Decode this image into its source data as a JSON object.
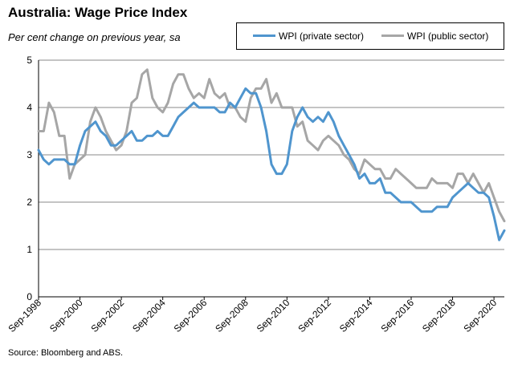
{
  "title": "Australia: Wage Price Index",
  "subtitle": "Per cent change on previous year, sa",
  "source": "Source: Bloomberg and ABS.",
  "colors": {
    "private": "#4f95ce",
    "public": "#a6a6a6",
    "grid": "#888888"
  },
  "legend": {
    "private": "WPI (private sector)",
    "public": "WPI (public sector)"
  },
  "chart_data": {
    "type": "line",
    "ylim": [
      0,
      5
    ],
    "yticks": [
      "0",
      "1",
      "2",
      "3",
      "4",
      "5"
    ],
    "grid": true,
    "legend_position": "top-right",
    "x_start": "Sep-1998",
    "x_end": "Dec-2020",
    "x_tick_labels": [
      "Sep-1998",
      "Sep-2000",
      "Sep-2002",
      "Sep-2004",
      "Sep-2006",
      "Sep-2008",
      "Sep-2010",
      "Sep-2012",
      "Sep-2014",
      "Sep-2016",
      "Sep-2018",
      "Sep-2020"
    ],
    "series": [
      {
        "name": "WPI (private sector)",
        "values": [
          3.1,
          2.9,
          2.8,
          2.9,
          2.9,
          2.9,
          2.8,
          2.8,
          3.2,
          3.5,
          3.6,
          3.7,
          3.5,
          3.4,
          3.2,
          3.2,
          3.3,
          3.4,
          3.5,
          3.3,
          3.3,
          3.4,
          3.4,
          3.5,
          3.4,
          3.4,
          3.6,
          3.8,
          3.9,
          4.0,
          4.1,
          4.0,
          4.0,
          4.0,
          4.0,
          3.9,
          3.9,
          4.1,
          4.0,
          4.2,
          4.4,
          4.3,
          4.3,
          4.0,
          3.5,
          2.8,
          2.6,
          2.6,
          2.8,
          3.5,
          3.8,
          4.0,
          3.8,
          3.7,
          3.8,
          3.7,
          3.9,
          3.7,
          3.4,
          3.2,
          3.0,
          2.8,
          2.5,
          2.6,
          2.4,
          2.4,
          2.5,
          2.2,
          2.2,
          2.1,
          2.0,
          2.0,
          2.0,
          1.9,
          1.8,
          1.8,
          1.8,
          1.9,
          1.9,
          1.9,
          2.1,
          2.2,
          2.3,
          2.4,
          2.3,
          2.2,
          2.2,
          2.1,
          1.7,
          1.2,
          1.4
        ]
      },
      {
        "name": "WPI (public sector)",
        "values": [
          3.5,
          3.5,
          4.1,
          3.9,
          3.4,
          3.4,
          2.5,
          2.8,
          2.9,
          3.0,
          3.7,
          4.0,
          3.8,
          3.5,
          3.3,
          3.1,
          3.2,
          3.5,
          4.1,
          4.2,
          4.7,
          4.8,
          4.2,
          4.0,
          3.9,
          4.1,
          4.5,
          4.7,
          4.7,
          4.4,
          4.2,
          4.3,
          4.2,
          4.6,
          4.3,
          4.2,
          4.3,
          4.0,
          4.0,
          3.8,
          3.7,
          4.2,
          4.4,
          4.4,
          4.6,
          4.1,
          4.3,
          4.0,
          4.0,
          4.0,
          3.6,
          3.7,
          3.3,
          3.2,
          3.1,
          3.3,
          3.4,
          3.3,
          3.2,
          3.0,
          2.9,
          2.7,
          2.6,
          2.9,
          2.8,
          2.7,
          2.7,
          2.5,
          2.5,
          2.7,
          2.6,
          2.5,
          2.4,
          2.3,
          2.3,
          2.3,
          2.5,
          2.4,
          2.4,
          2.4,
          2.3,
          2.6,
          2.6,
          2.4,
          2.6,
          2.4,
          2.2,
          2.4,
          2.1,
          1.8,
          1.6
        ]
      }
    ]
  }
}
